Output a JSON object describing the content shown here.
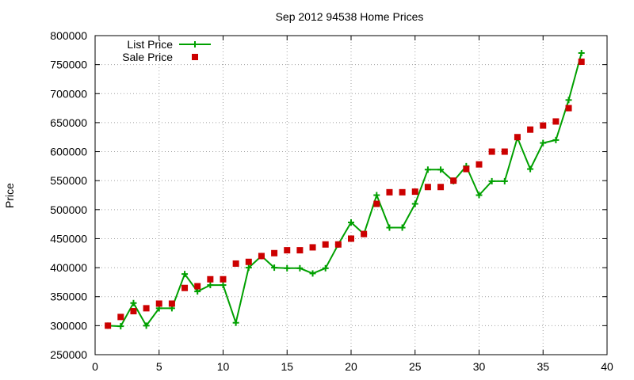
{
  "chart_data": {
    "type": "line",
    "title": "Sep 2012 94538 Home Prices",
    "xlabel": "",
    "ylabel": "Price",
    "xlim": [
      0,
      40
    ],
    "ylim": [
      250000,
      800000
    ],
    "x_ticks": [
      0,
      5,
      10,
      15,
      20,
      25,
      30,
      35,
      40
    ],
    "y_ticks": [
      250000,
      300000,
      350000,
      400000,
      450000,
      500000,
      550000,
      600000,
      650000,
      700000,
      750000,
      800000
    ],
    "grid": true,
    "legend_position": "top-left",
    "series": [
      {
        "name": "List Price",
        "style": "line-with-plus-markers",
        "color": "#00a000",
        "x": [
          1,
          2,
          3,
          4,
          5,
          6,
          7,
          8,
          9,
          10,
          11,
          12,
          13,
          14,
          15,
          16,
          17,
          18,
          19,
          20,
          21,
          22,
          23,
          24,
          25,
          26,
          27,
          28,
          29,
          30,
          31,
          32,
          33,
          34,
          35,
          36,
          37,
          38
        ],
        "y": [
          300000,
          299000,
          339000,
          300000,
          330000,
          330000,
          389000,
          359000,
          370000,
          370000,
          305000,
          400000,
          420000,
          400000,
          399000,
          399000,
          390000,
          399000,
          440000,
          478000,
          458000,
          525000,
          469000,
          469000,
          510000,
          569000,
          569000,
          549000,
          575000,
          525000,
          549000,
          549000,
          624000,
          570000,
          615000,
          620000,
          689000,
          770000
        ]
      },
      {
        "name": "Sale Price",
        "style": "square-markers",
        "color": "#cc0000",
        "x": [
          1,
          2,
          3,
          4,
          5,
          6,
          7,
          8,
          9,
          10,
          11,
          12,
          13,
          14,
          15,
          16,
          17,
          18,
          19,
          20,
          21,
          22,
          23,
          24,
          25,
          26,
          27,
          28,
          29,
          30,
          31,
          32,
          33,
          34,
          35,
          36,
          37,
          38
        ],
        "y": [
          300000,
          315000,
          325000,
          330000,
          338000,
          338000,
          365000,
          368000,
          380000,
          380000,
          407000,
          410000,
          420000,
          425000,
          430000,
          430000,
          435000,
          440000,
          440000,
          450000,
          458000,
          510000,
          530000,
          530000,
          531000,
          539000,
          539000,
          550000,
          570000,
          578000,
          600000,
          600000,
          625000,
          638000,
          645000,
          652000,
          675000,
          755000
        ]
      }
    ]
  }
}
